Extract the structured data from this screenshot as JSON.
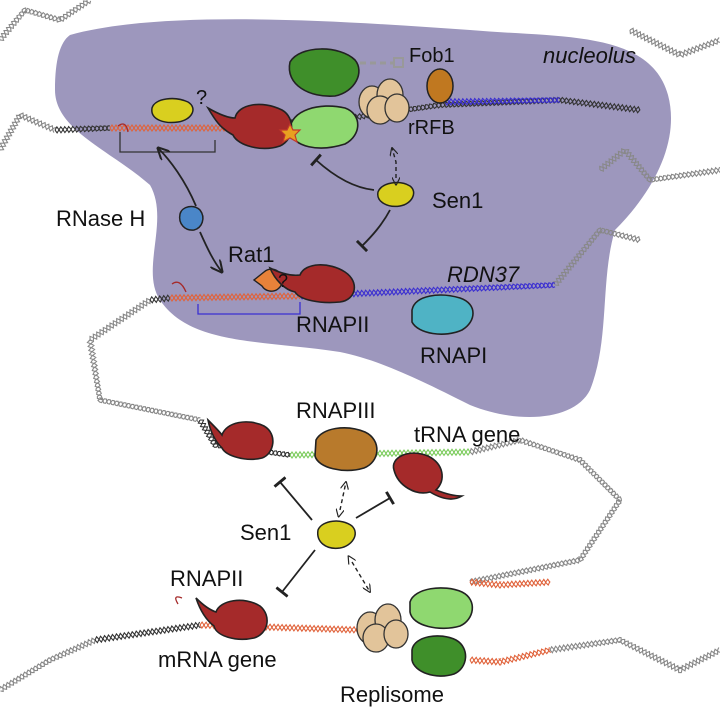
{
  "labels": {
    "nucleolus": "nucleolus",
    "fob1": "Fob1",
    "rfb": "rRFB",
    "q1": "?",
    "q2": "?",
    "sen1_top": "Sen1",
    "rnaseh": "RNase H",
    "rat1": "Rat1",
    "rdn37": "RDN37",
    "rnapii_top": "RNAPII",
    "rnapi": "RNAPI",
    "rnapiii": "RNAPIII",
    "trna_gene": "tRNA gene",
    "sen1_bottom": "Sen1",
    "rnapii_bottom": "RNAPII",
    "mrna_gene": "mRNA gene",
    "replisome": "Replisome"
  },
  "colors": {
    "nucleolus": "#9d97bd",
    "rnapii": "#a52a2a",
    "rnapi": "#4fb3c5",
    "rnapiii": "#b87a2c",
    "sen1": "#d9cf1f",
    "rnaseh": "#4a86c8",
    "rat1": "#e8823a",
    "fob1": "#c07820",
    "replisome_light": "#8fd870",
    "replisome_dark": "#3f8f2a",
    "mcm": "#e2c49a",
    "rdna": "#3b2fd1",
    "trna": "#7acb5a",
    "mrna": "#e0623a",
    "rrfb_text": "#d6c21a",
    "nucleolus_text": "#a7a3c6"
  }
}
